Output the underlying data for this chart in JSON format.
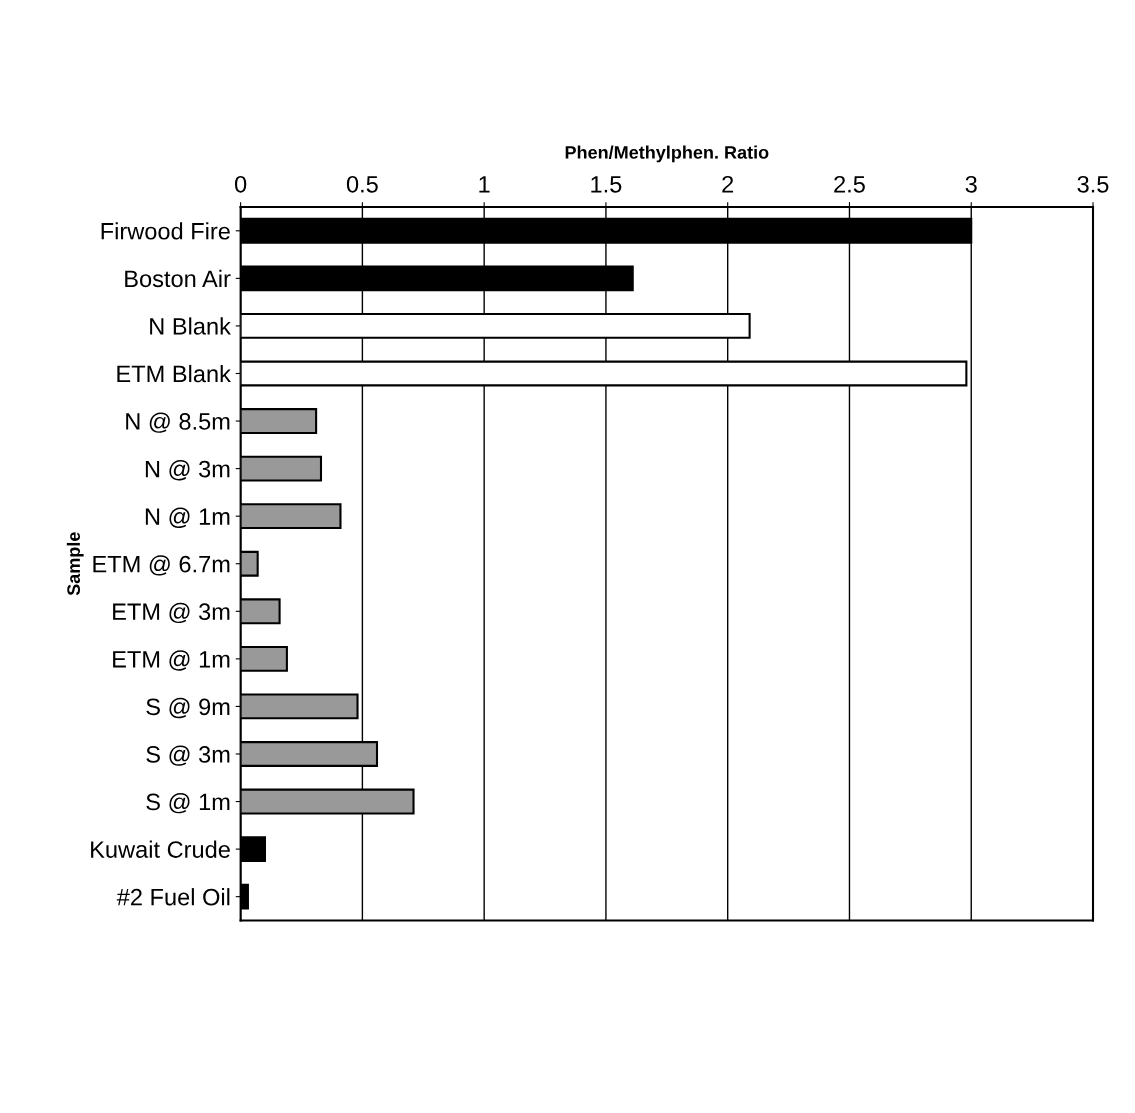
{
  "chart_data": {
    "type": "bar",
    "orientation": "horizontal",
    "xlabel": "Phen/Methylphen. Ratio",
    "ylabel": "Sample",
    "categories": [
      "Firwood Fire",
      "Boston Air",
      "N Blank",
      "ETM Blank",
      "N @ 8.5m",
      "N @ 3m",
      "N @ 1m",
      "ETM @ 6.7m",
      "ETM @ 3m",
      "ETM @ 1m",
      "S @ 9m",
      "S @ 3m",
      "S @ 1m",
      "Kuwait Crude",
      "#2 Fuel Oil"
    ],
    "values": [
      3.0,
      1.61,
      2.09,
      2.98,
      0.31,
      0.33,
      0.41,
      0.07,
      0.16,
      0.19,
      0.48,
      0.56,
      0.71,
      0.1,
      0.03
    ],
    "colors": [
      "#000000",
      "#000000",
      "#ffffff",
      "#ffffff",
      "#999999",
      "#999999",
      "#999999",
      "#999999",
      "#999999",
      "#999999",
      "#999999",
      "#999999",
      "#999999",
      "#000000",
      "#000000"
    ],
    "xlim": [
      0,
      3.5
    ],
    "xticks": [
      0,
      0.5,
      1,
      1.5,
      2,
      2.5,
      3,
      3.5
    ],
    "grid": "x"
  }
}
